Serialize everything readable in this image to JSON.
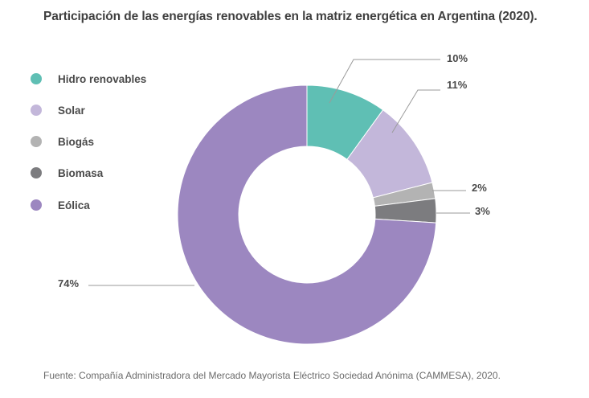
{
  "chart_data": {
    "type": "pie",
    "title": "Participación de las energías renovables en la matriz energética en Argentina (2020).",
    "donut": true,
    "legend_position": "left",
    "unit": "%",
    "series": [
      {
        "name": "Hidro renovables",
        "value": 10,
        "label": "10%",
        "color": "#5fbfb4"
      },
      {
        "name": "Solar",
        "value": 11,
        "label": "11%",
        "color": "#c3b7da"
      },
      {
        "name": "Biogás",
        "value": 2,
        "label": "2%",
        "color": "#b3b3b3"
      },
      {
        "name": "Biomasa",
        "value": 3,
        "label": "3%",
        "color": "#7c7c7f"
      },
      {
        "name": "Eólica",
        "value": 74,
        "label": "74%",
        "color": "#9c87c0"
      }
    ],
    "source": "Fuente: Compañía Administradora del Mercado Mayorista Eléctrico Sociedad Anónima (CAMMESA), 2020."
  }
}
